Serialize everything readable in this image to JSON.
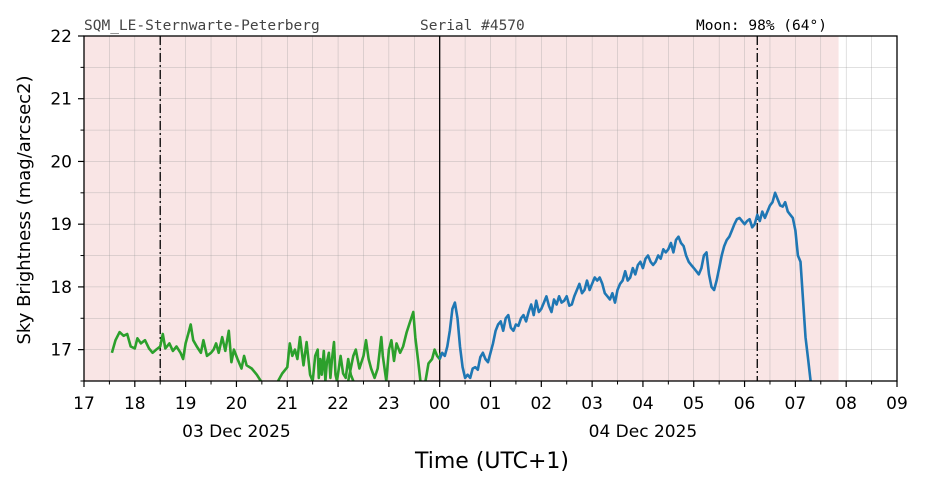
{
  "header": {
    "station": "SQM_LE-Sternwarte-Peterberg",
    "serial": "Serial #4570",
    "moon": "Moon: 98% (64°)"
  },
  "chart_data": {
    "type": "line",
    "xlabel": "Time (UTC+1)",
    "ylabel": "Sky Brightness (mag/arcsec2)",
    "xlim_hours": [
      17,
      33
    ],
    "ylim": [
      16.5,
      22
    ],
    "x_tick_labels": [
      "17",
      "18",
      "19",
      "20",
      "21",
      "22",
      "23",
      "00",
      "01",
      "02",
      "03",
      "04",
      "05",
      "06",
      "07",
      "08",
      "09"
    ],
    "y_tick_labels": [
      "17",
      "18",
      "19",
      "20",
      "21",
      "22"
    ],
    "date_labels": [
      {
        "label": "03 Dec 2025",
        "hour": 20
      },
      {
        "label": "04 Dec 2025",
        "hour": 28
      }
    ],
    "grid": true,
    "night_shading": {
      "from_hour": 17,
      "to_hour": 31.85,
      "color": "#f9e5e5"
    },
    "midnight_line_hour": 24,
    "moon_lines_hours": [
      18.5,
      30.25
    ],
    "series": [
      {
        "color": "#2ca02c",
        "points": [
          [
            17.55,
            16.95
          ],
          [
            17.62,
            17.15
          ],
          [
            17.7,
            17.28
          ],
          [
            17.78,
            17.22
          ],
          [
            17.85,
            17.25
          ],
          [
            17.92,
            17.05
          ],
          [
            18.0,
            17.02
          ],
          [
            18.05,
            17.18
          ],
          [
            18.12,
            17.1
          ],
          [
            18.2,
            17.15
          ],
          [
            18.28,
            17.02
          ],
          [
            18.35,
            16.95
          ],
          [
            18.42,
            17.0
          ],
          [
            18.5,
            17.05
          ],
          [
            18.55,
            17.25
          ],
          [
            18.6,
            17.02
          ],
          [
            18.68,
            17.1
          ],
          [
            18.75,
            16.98
          ],
          [
            18.82,
            17.05
          ],
          [
            18.9,
            16.95
          ],
          [
            18.95,
            16.85
          ],
          [
            19.0,
            17.1
          ],
          [
            19.05,
            17.25
          ],
          [
            19.1,
            17.4
          ],
          [
            19.15,
            17.15
          ],
          [
            19.22,
            17.05
          ],
          [
            19.3,
            16.95
          ],
          [
            19.35,
            17.15
          ],
          [
            19.42,
            16.9
          ],
          [
            19.5,
            16.95
          ],
          [
            19.55,
            17.0
          ],
          [
            19.6,
            17.1
          ],
          [
            19.65,
            16.95
          ],
          [
            19.72,
            17.2
          ],
          [
            19.78,
            16.98
          ],
          [
            19.85,
            17.3
          ],
          [
            19.9,
            16.8
          ],
          [
            19.95,
            17.0
          ],
          [
            20.02,
            16.85
          ],
          [
            20.1,
            16.7
          ],
          [
            20.15,
            16.9
          ],
          [
            20.2,
            16.75
          ],
          [
            20.3,
            16.7
          ],
          [
            20.4,
            16.6
          ],
          [
            20.48,
            16.5
          ]
        ]
      },
      {
        "color": "#2ca02c",
        "points": [
          [
            20.82,
            16.5
          ],
          [
            20.9,
            16.62
          ],
          [
            21.0,
            16.72
          ],
          [
            21.05,
            17.1
          ],
          [
            21.1,
            16.9
          ],
          [
            21.15,
            17.0
          ],
          [
            21.2,
            16.85
          ],
          [
            21.25,
            17.2
          ],
          [
            21.32,
            16.75
          ],
          [
            21.38,
            17.12
          ],
          [
            21.45,
            16.6
          ],
          [
            21.5,
            16.5
          ]
        ]
      },
      {
        "color": "#2ca02c",
        "points": [
          [
            21.5,
            16.5
          ],
          [
            21.55,
            16.9
          ],
          [
            21.6,
            17.0
          ],
          [
            21.62,
            16.55
          ],
          [
            21.65,
            16.85
          ],
          [
            21.68,
            16.6
          ],
          [
            21.72,
            16.98
          ],
          [
            21.75,
            16.5
          ],
          [
            21.78,
            16.8
          ],
          [
            21.82,
            16.95
          ],
          [
            21.85,
            16.55
          ],
          [
            21.88,
            16.85
          ],
          [
            21.92,
            17.12
          ],
          [
            21.95,
            16.6
          ],
          [
            21.98,
            16.5
          ],
          [
            22.05,
            16.9
          ],
          [
            22.1,
            16.62
          ],
          [
            22.15,
            16.55
          ],
          [
            22.2,
            16.85
          ],
          [
            22.25,
            16.6
          ],
          [
            22.3,
            16.5
          ]
        ]
      },
      {
        "color": "#2ca02c",
        "points": [
          [
            22.2,
            16.5
          ],
          [
            22.3,
            16.9
          ],
          [
            22.35,
            17.0
          ],
          [
            22.42,
            16.7
          ],
          [
            22.5,
            16.9
          ],
          [
            22.55,
            17.15
          ],
          [
            22.6,
            16.85
          ],
          [
            22.65,
            16.7
          ],
          [
            22.72,
            16.55
          ],
          [
            22.78,
            16.7
          ],
          [
            22.85,
            17.2
          ],
          [
            22.88,
            16.9
          ],
          [
            22.95,
            16.5
          ]
        ]
      },
      {
        "color": "#2ca02c",
        "points": [
          [
            22.95,
            16.5
          ],
          [
            23.0,
            17.0
          ],
          [
            23.05,
            17.15
          ],
          [
            23.1,
            16.82
          ],
          [
            23.15,
            17.1
          ],
          [
            23.22,
            16.95
          ],
          [
            23.28,
            17.05
          ],
          [
            23.35,
            17.28
          ],
          [
            23.42,
            17.45
          ],
          [
            23.48,
            17.6
          ],
          [
            23.52,
            17.2
          ],
          [
            23.58,
            16.8
          ],
          [
            23.62,
            16.5
          ]
        ]
      },
      {
        "color": "#2ca02c",
        "points": [
          [
            23.72,
            16.5
          ],
          [
            23.78,
            16.78
          ],
          [
            23.85,
            16.85
          ],
          [
            23.9,
            17.0
          ],
          [
            23.95,
            16.9
          ],
          [
            24.0,
            16.85
          ],
          [
            24.02,
            16.95
          ]
        ]
      },
      {
        "color": "#1f77b4",
        "points": [
          [
            24.0,
            16.85
          ],
          [
            24.05,
            16.95
          ],
          [
            24.1,
            16.9
          ],
          [
            24.15,
            17.05
          ],
          [
            24.2,
            17.3
          ],
          [
            24.25,
            17.65
          ],
          [
            24.3,
            17.75
          ],
          [
            24.35,
            17.5
          ],
          [
            24.4,
            17.05
          ],
          [
            24.45,
            16.72
          ],
          [
            24.5,
            16.55
          ],
          [
            24.55,
            16.6
          ],
          [
            24.6,
            16.55
          ],
          [
            24.65,
            16.7
          ],
          [
            24.7,
            16.72
          ],
          [
            24.75,
            16.68
          ],
          [
            24.8,
            16.88
          ],
          [
            24.85,
            16.95
          ],
          [
            24.9,
            16.85
          ],
          [
            24.95,
            16.8
          ],
          [
            25.0,
            16.95
          ],
          [
            25.05,
            17.1
          ],
          [
            25.1,
            17.3
          ],
          [
            25.15,
            17.4
          ],
          [
            25.2,
            17.45
          ],
          [
            25.25,
            17.3
          ],
          [
            25.3,
            17.5
          ],
          [
            25.35,
            17.55
          ],
          [
            25.4,
            17.35
          ],
          [
            25.45,
            17.3
          ],
          [
            25.5,
            17.4
          ],
          [
            25.55,
            17.38
          ],
          [
            25.6,
            17.5
          ],
          [
            25.65,
            17.55
          ],
          [
            25.7,
            17.45
          ],
          [
            25.75,
            17.6
          ],
          [
            25.8,
            17.72
          ],
          [
            25.85,
            17.55
          ],
          [
            25.9,
            17.78
          ],
          [
            25.95,
            17.6
          ],
          [
            26.0,
            17.65
          ],
          [
            26.05,
            17.75
          ],
          [
            26.1,
            17.85
          ],
          [
            26.15,
            17.7
          ],
          [
            26.2,
            17.6
          ],
          [
            26.25,
            17.8
          ],
          [
            26.3,
            17.72
          ],
          [
            26.35,
            17.85
          ],
          [
            26.4,
            17.75
          ],
          [
            26.45,
            17.78
          ],
          [
            26.5,
            17.85
          ],
          [
            26.55,
            17.7
          ],
          [
            26.6,
            17.72
          ],
          [
            26.65,
            17.85
          ],
          [
            26.7,
            17.95
          ],
          [
            26.75,
            18.05
          ],
          [
            26.8,
            17.9
          ],
          [
            26.85,
            17.95
          ],
          [
            26.9,
            18.1
          ],
          [
            26.95,
            17.95
          ],
          [
            27.0,
            18.05
          ],
          [
            27.05,
            18.15
          ],
          [
            27.1,
            18.1
          ],
          [
            27.15,
            18.15
          ],
          [
            27.2,
            18.05
          ],
          [
            27.25,
            17.9
          ],
          [
            27.3,
            17.85
          ],
          [
            27.35,
            17.8
          ],
          [
            27.4,
            17.9
          ],
          [
            27.45,
            17.75
          ],
          [
            27.5,
            17.95
          ],
          [
            27.55,
            18.05
          ],
          [
            27.6,
            18.1
          ],
          [
            27.65,
            18.25
          ],
          [
            27.7,
            18.1
          ],
          [
            27.75,
            18.15
          ],
          [
            27.8,
            18.3
          ],
          [
            27.85,
            18.2
          ],
          [
            27.9,
            18.35
          ],
          [
            27.95,
            18.4
          ],
          [
            28.0,
            18.3
          ],
          [
            28.05,
            18.45
          ],
          [
            28.1,
            18.5
          ],
          [
            28.15,
            18.4
          ],
          [
            28.2,
            18.35
          ],
          [
            28.25,
            18.4
          ],
          [
            28.3,
            18.5
          ],
          [
            28.35,
            18.45
          ],
          [
            28.4,
            18.6
          ],
          [
            28.45,
            18.55
          ],
          [
            28.5,
            18.6
          ],
          [
            28.55,
            18.7
          ],
          [
            28.6,
            18.55
          ],
          [
            28.65,
            18.75
          ],
          [
            28.7,
            18.8
          ],
          [
            28.75,
            18.7
          ],
          [
            28.8,
            18.65
          ],
          [
            28.85,
            18.5
          ],
          [
            28.9,
            18.4
          ],
          [
            28.95,
            18.35
          ],
          [
            29.0,
            18.3
          ],
          [
            29.05,
            18.25
          ],
          [
            29.1,
            18.2
          ],
          [
            29.15,
            18.3
          ],
          [
            29.2,
            18.5
          ],
          [
            29.25,
            18.55
          ],
          [
            29.3,
            18.2
          ],
          [
            29.35,
            18.0
          ],
          [
            29.4,
            17.95
          ],
          [
            29.45,
            18.1
          ],
          [
            29.5,
            18.3
          ],
          [
            29.55,
            18.5
          ],
          [
            29.6,
            18.65
          ],
          [
            29.65,
            18.75
          ],
          [
            29.7,
            18.8
          ],
          [
            29.75,
            18.9
          ],
          [
            29.8,
            19.0
          ],
          [
            29.85,
            19.08
          ],
          [
            29.9,
            19.1
          ],
          [
            29.95,
            19.05
          ],
          [
            30.0,
            19.0
          ],
          [
            30.05,
            19.05
          ],
          [
            30.1,
            19.08
          ],
          [
            30.15,
            18.95
          ],
          [
            30.2,
            19.0
          ],
          [
            30.25,
            19.15
          ],
          [
            30.3,
            19.05
          ],
          [
            30.35,
            19.2
          ],
          [
            30.4,
            19.1
          ],
          [
            30.45,
            19.2
          ],
          [
            30.5,
            19.3
          ],
          [
            30.55,
            19.35
          ],
          [
            30.6,
            19.5
          ],
          [
            30.65,
            19.4
          ],
          [
            30.7,
            19.3
          ],
          [
            30.75,
            19.28
          ],
          [
            30.8,
            19.35
          ],
          [
            30.85,
            19.2
          ],
          [
            30.9,
            19.15
          ],
          [
            30.95,
            19.1
          ],
          [
            31.0,
            18.9
          ],
          [
            31.05,
            18.5
          ],
          [
            31.1,
            18.4
          ],
          [
            31.15,
            17.8
          ],
          [
            31.2,
            17.2
          ],
          [
            31.25,
            16.85
          ],
          [
            31.3,
            16.5
          ]
        ]
      }
    ]
  }
}
